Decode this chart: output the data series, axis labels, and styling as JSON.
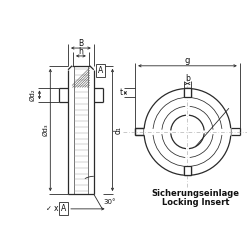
{
  "bg_color": "#ffffff",
  "line_color": "#2a2a2a",
  "dim_color": "#2a2a2a",
  "hatch_color": "#555555",
  "text_color": "#111111",
  "title_text1": "Sicherungseinlage",
  "title_text2": "Locking Insert",
  "label_d2": "Ød₂",
  "label_d3": "Ød₃",
  "label_d1": "d₁",
  "label_B": "B",
  "label_h": "h",
  "label_g": "g",
  "label_b": "b",
  "label_t": "t",
  "label_A": "A",
  "label_x": "x",
  "angle_label": "30°",
  "fig_width": 2.5,
  "fig_height": 2.5,
  "dpi": 100
}
